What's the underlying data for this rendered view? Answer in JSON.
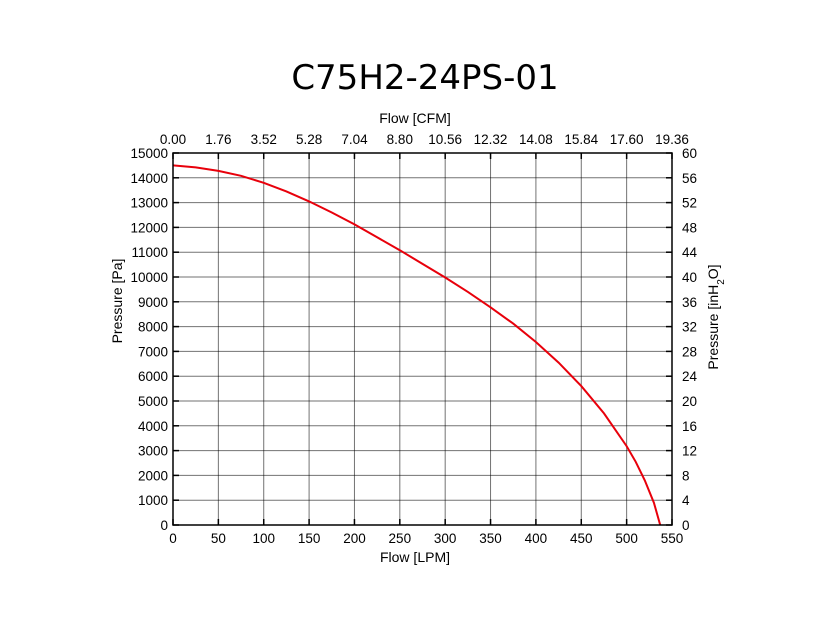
{
  "chart_data": {
    "type": "line",
    "title": "C75H2-24PS-01",
    "xlabel": "Flow [LPM]",
    "x2label": "Flow [CFM]",
    "ylabel": "Pressure [Pa]",
    "y2label_parts": {
      "prefix": "Pressure [inH",
      "sub": "2",
      "suffix": "O]"
    },
    "xlim": [
      0,
      550
    ],
    "ylim": [
      0,
      15000
    ],
    "y2lim": [
      0,
      60
    ],
    "x_ticks": [
      "0",
      "50",
      "100",
      "150",
      "200",
      "250",
      "300",
      "350",
      "400",
      "450",
      "500",
      "550"
    ],
    "x2_ticks": [
      "0.00",
      "1.76",
      "3.52",
      "5.28",
      "7.04",
      "8.80",
      "10.56",
      "12.32",
      "14.08",
      "15.84",
      "17.60",
      "19.36"
    ],
    "y_ticks": [
      "0",
      "1000",
      "2000",
      "3000",
      "4000",
      "5000",
      "6000",
      "7000",
      "8000",
      "9000",
      "10000",
      "11000",
      "12000",
      "13000",
      "14000",
      "15000"
    ],
    "y2_ticks": [
      "0",
      "4",
      "8",
      "12",
      "16",
      "20",
      "24",
      "28",
      "32",
      "36",
      "40",
      "44",
      "48",
      "52",
      "56",
      "60"
    ],
    "grid": true,
    "series": [
      {
        "name": "C75H2-24PS-01",
        "color": "#e8000b",
        "x": [
          0,
          25,
          50,
          75,
          100,
          125,
          150,
          175,
          200,
          225,
          250,
          275,
          300,
          325,
          350,
          375,
          400,
          425,
          450,
          475,
          500,
          510,
          520,
          530,
          537
        ],
        "y": [
          14500,
          14420,
          14280,
          14080,
          13800,
          13450,
          13050,
          12600,
          12120,
          11600,
          11080,
          10530,
          9980,
          9400,
          8780,
          8120,
          7380,
          6550,
          5600,
          4500,
          3180,
          2550,
          1800,
          900,
          0
        ]
      }
    ]
  }
}
